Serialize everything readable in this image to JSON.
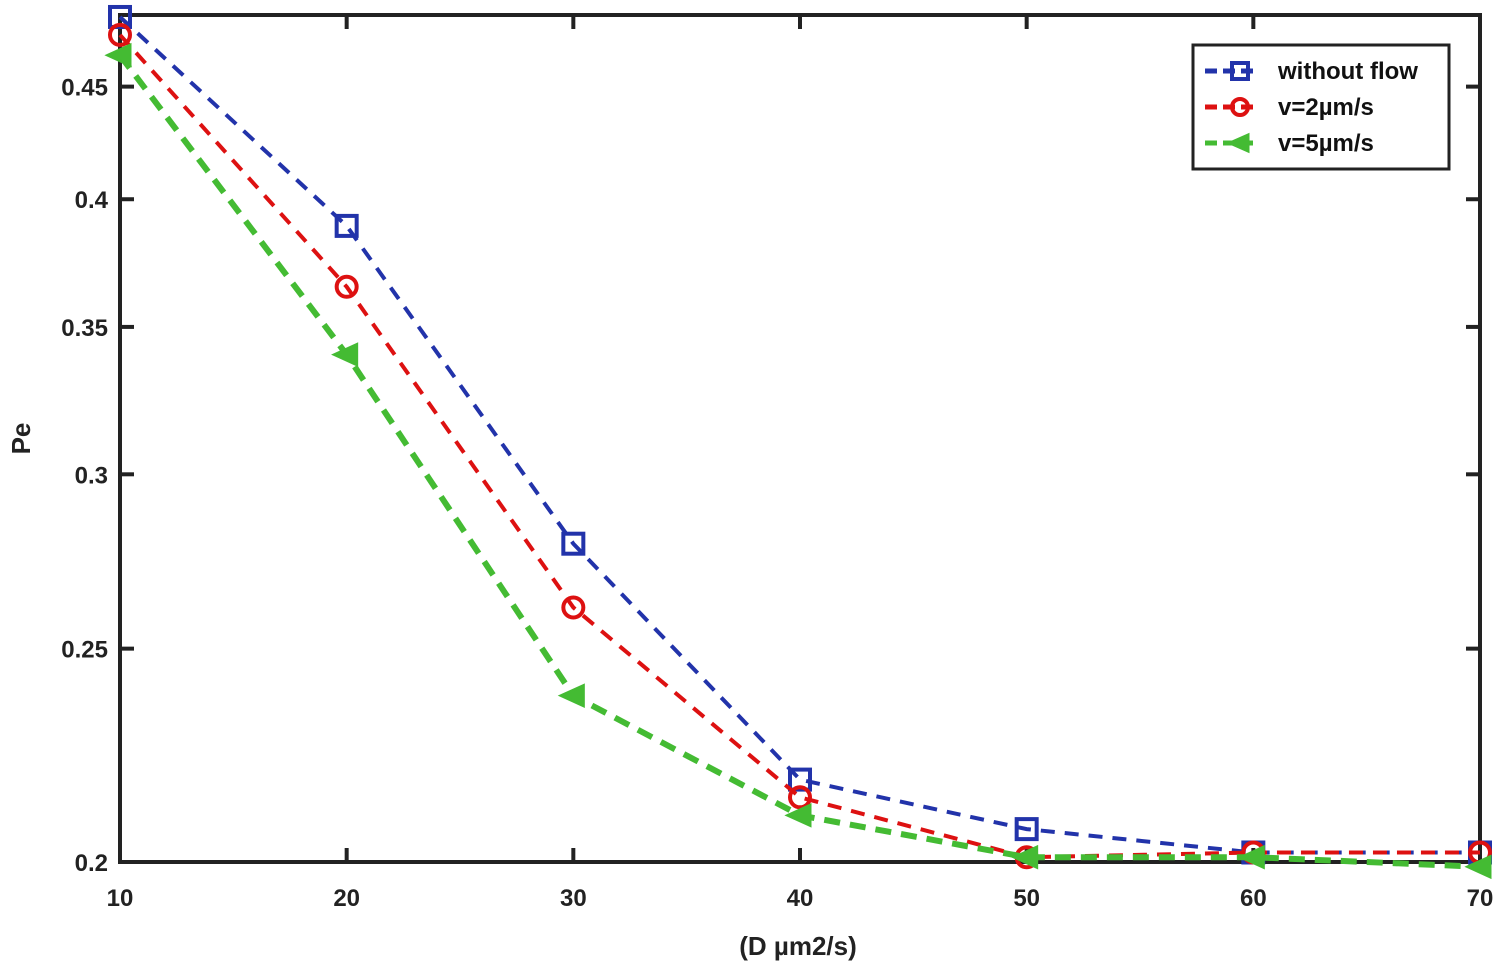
{
  "chart_data": {
    "type": "line",
    "title": "",
    "xlabel": "(D µm2/s)",
    "ylabel": "Pe",
    "xlim": [
      10,
      70
    ],
    "ylim": [
      0.2,
      0.485
    ],
    "yscale": "log",
    "grid": false,
    "legend_position": "top-right",
    "x": [
      10,
      20,
      30,
      40,
      50,
      60,
      70
    ],
    "xticks": [
      "10",
      "20",
      "30",
      "40",
      "50",
      "60",
      "70"
    ],
    "yticks": [
      {
        "value": 0.2,
        "label": "0.2"
      },
      {
        "value": 0.25,
        "label": "0.25"
      },
      {
        "value": 0.3,
        "label": "0.3"
      },
      {
        "value": 0.35,
        "label": "0.35"
      },
      {
        "value": 0.4,
        "label": "0.4"
      },
      {
        "value": 0.45,
        "label": "0.45"
      }
    ],
    "series": [
      {
        "name": "without flow",
        "color": "#2233aa",
        "marker": "square",
        "values": [
          0.484,
          0.389,
          0.279,
          0.218,
          0.207,
          0.202,
          0.202
        ]
      },
      {
        "name": "v=2µm/s",
        "color": "#dd1111",
        "marker": "circle",
        "values": [
          0.475,
          0.365,
          0.261,
          0.214,
          0.201,
          0.202,
          0.202
        ]
      },
      {
        "name": "v=5µm/s",
        "color": "#44bb33",
        "marker": "triangle-left",
        "values": [
          0.465,
          0.34,
          0.238,
          0.21,
          0.201,
          0.201,
          0.199
        ]
      }
    ]
  }
}
